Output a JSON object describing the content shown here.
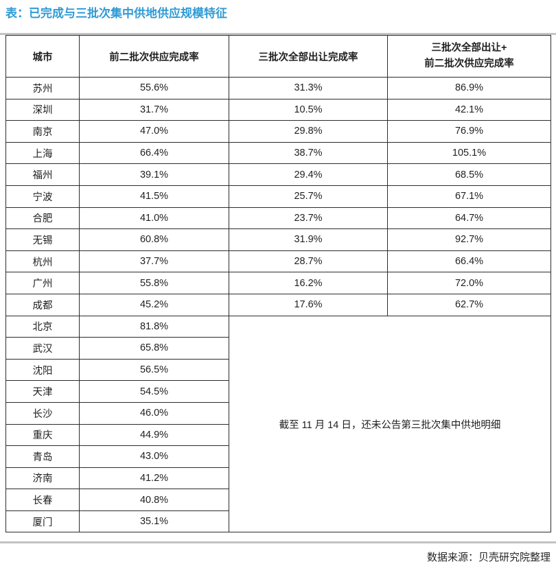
{
  "title": "表：已完成与三批次集中供地供应规模特征",
  "table": {
    "headers": {
      "city": "城市",
      "first_two": "前二批次供应完成率",
      "third": "三批次全部出让完成率",
      "combined_line1": "三批次全部出让+",
      "combined_line2": "前二批次供应完成率"
    },
    "rows_full": [
      {
        "city": "苏州",
        "first_two": "55.6%",
        "third": "31.3%",
        "combined": "86.9%"
      },
      {
        "city": "深圳",
        "first_two": "31.7%",
        "third": "10.5%",
        "combined": "42.1%"
      },
      {
        "city": "南京",
        "first_two": "47.0%",
        "third": "29.8%",
        "combined": "76.9%"
      },
      {
        "city": "上海",
        "first_two": "66.4%",
        "third": "38.7%",
        "combined": "105.1%"
      },
      {
        "city": "福州",
        "first_two": "39.1%",
        "third": "29.4%",
        "combined": "68.5%"
      },
      {
        "city": "宁波",
        "first_two": "41.5%",
        "third": "25.7%",
        "combined": "67.1%"
      },
      {
        "city": "合肥",
        "first_two": "41.0%",
        "third": "23.7%",
        "combined": "64.7%"
      },
      {
        "city": "无锡",
        "first_two": "60.8%",
        "third": "31.9%",
        "combined": "92.7%"
      },
      {
        "city": "杭州",
        "first_two": "37.7%",
        "third": "28.7%",
        "combined": "66.4%"
      },
      {
        "city": "广州",
        "first_two": "55.8%",
        "third": "16.2%",
        "combined": "72.0%"
      },
      {
        "city": "成都",
        "first_two": "45.2%",
        "third": "17.6%",
        "combined": "62.7%"
      }
    ],
    "rows_partial": [
      {
        "city": "北京",
        "first_two": "81.8%"
      },
      {
        "city": "武汉",
        "first_two": "65.8%"
      },
      {
        "city": "沈阳",
        "first_two": "56.5%"
      },
      {
        "city": "天津",
        "first_two": "54.5%"
      },
      {
        "city": "长沙",
        "first_two": "46.0%"
      },
      {
        "city": "重庆",
        "first_two": "44.9%"
      },
      {
        "city": "青岛",
        "first_two": "43.0%"
      },
      {
        "city": "济南",
        "first_two": "41.2%"
      },
      {
        "city": "长春",
        "first_two": "40.8%"
      },
      {
        "city": "厦门",
        "first_two": "35.1%"
      }
    ],
    "merged_note": "截至 11 月 14 日，还未公告第三批次集中供地明细"
  },
  "footer": {
    "source": "数据来源：贝壳研究院整理"
  },
  "colors": {
    "title_accent": "#2e9ad5",
    "divider": "#c3c3c3",
    "table_border": "#2b2b2b",
    "text": "#1f1f1f"
  }
}
